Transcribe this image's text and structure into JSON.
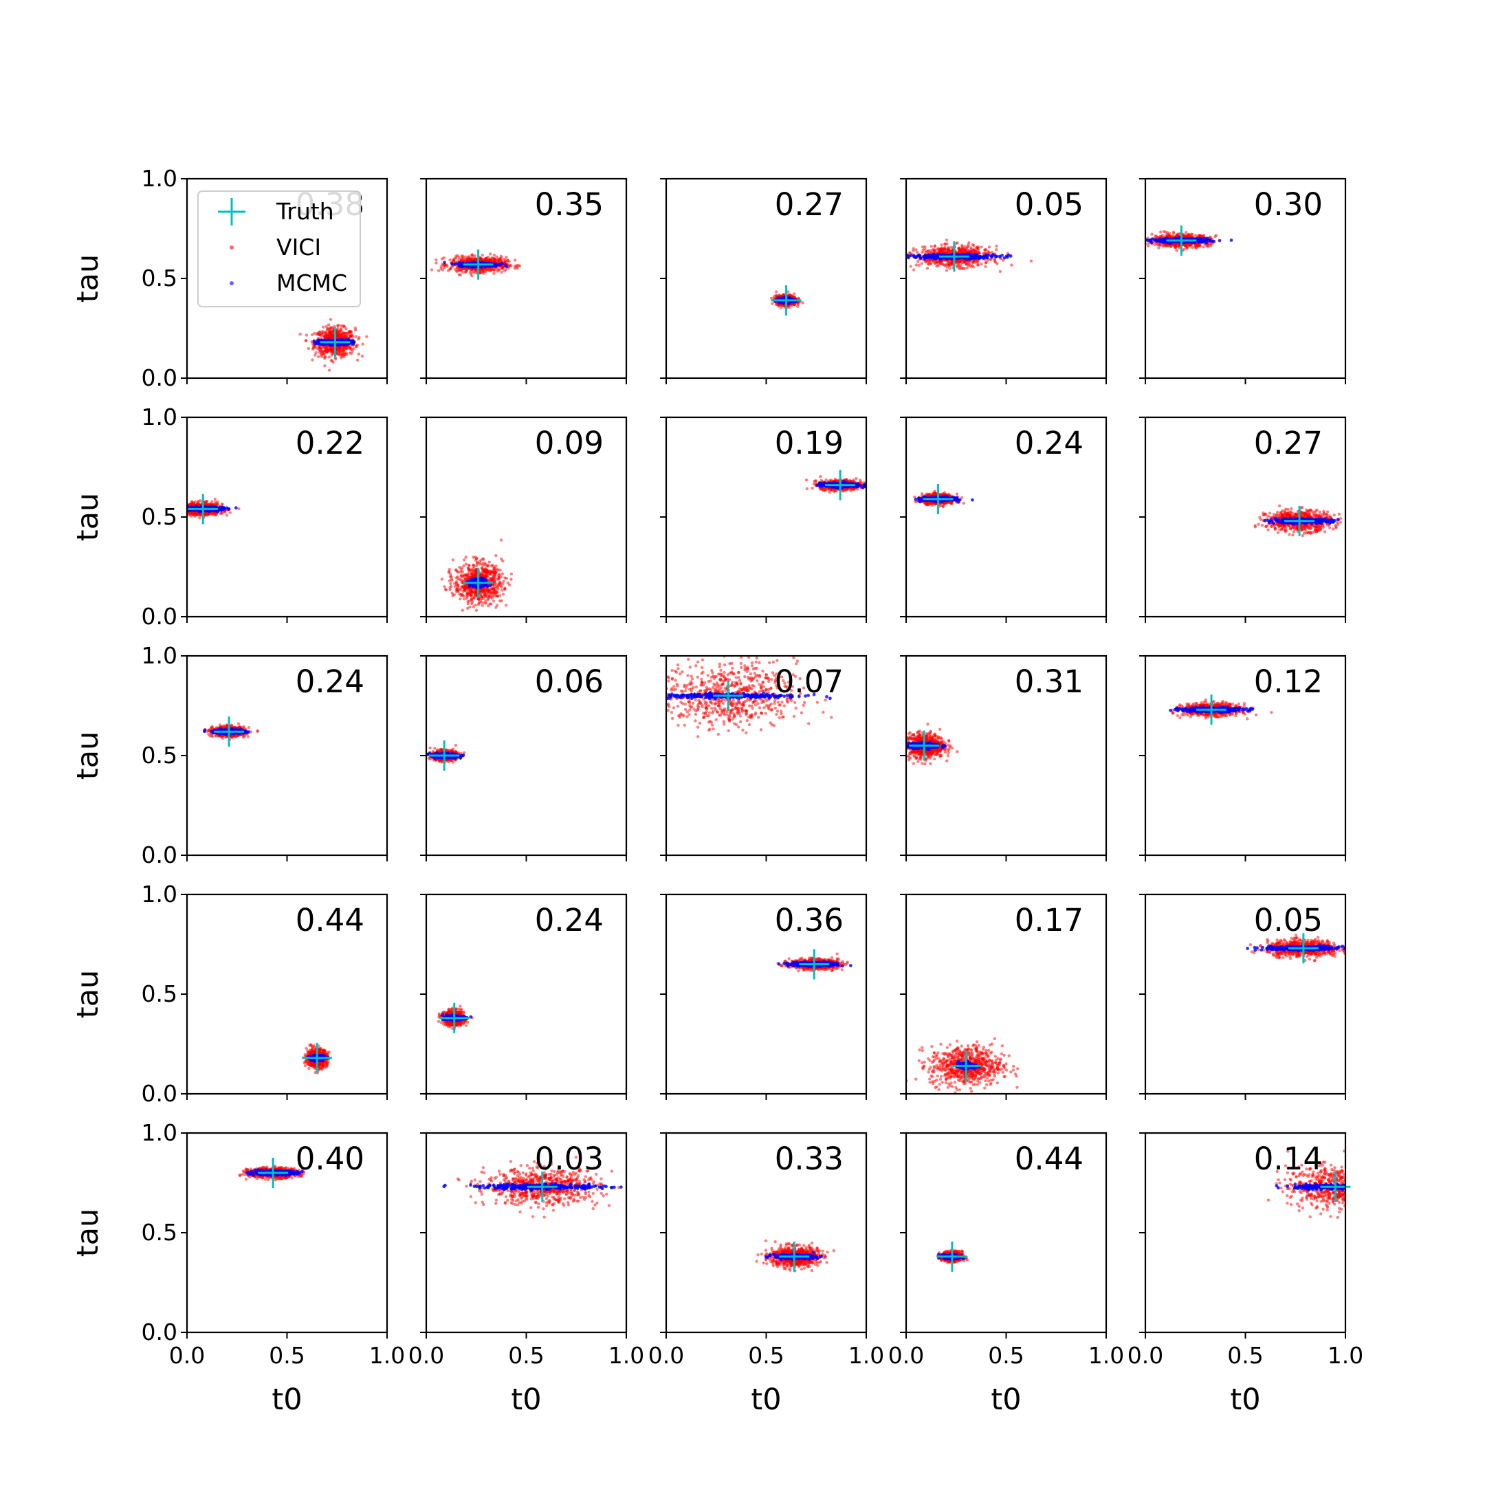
{
  "chart_data": {
    "type": "scatter",
    "grid_rows": 5,
    "grid_cols": 5,
    "xlabel": "t0",
    "ylabel": "tau",
    "xlim": [
      0,
      1
    ],
    "ylim": [
      0,
      1
    ],
    "xticks": [
      "0.0",
      "0.5",
      "1.0"
    ],
    "yticks": [
      "0.0",
      "0.5",
      "1.0"
    ],
    "grid": false,
    "legend": {
      "placement": "top-left of first panel",
      "entries": [
        {
          "name": "Truth",
          "marker": "plus",
          "color": "#00bfbf"
        },
        {
          "name": "VICI",
          "marker": "dot",
          "color": "#ff0000"
        },
        {
          "name": "MCMC",
          "marker": "dot",
          "color": "#0000ff"
        }
      ]
    },
    "series_colors": {
      "truth": "#00bfbf",
      "vici": "#ff0000",
      "mcmc": "#0000ff"
    },
    "panels": [
      {
        "label": "0.38",
        "truth": [
          0.74,
          0.18
        ],
        "vici_sigma": [
          0.05,
          0.035
        ],
        "mcmc_sigma": [
          0.04,
          0.006
        ]
      },
      {
        "label": "0.35",
        "truth": [
          0.26,
          0.57
        ],
        "vici_sigma": [
          0.07,
          0.018
        ],
        "mcmc_sigma": [
          0.05,
          0.005
        ]
      },
      {
        "label": "0.27",
        "truth": [
          0.6,
          0.39
        ],
        "vici_sigma": [
          0.025,
          0.012
        ],
        "mcmc_sigma": [
          0.02,
          0.005
        ]
      },
      {
        "label": "0.05",
        "truth": [
          0.24,
          0.61
        ],
        "vici_sigma": [
          0.09,
          0.025
        ],
        "mcmc_sigma": [
          0.11,
          0.005
        ]
      },
      {
        "label": "0.30",
        "truth": [
          0.18,
          0.69
        ],
        "vici_sigma": [
          0.07,
          0.015
        ],
        "mcmc_sigma": [
          0.07,
          0.005
        ]
      },
      {
        "label": "0.22",
        "truth": [
          0.08,
          0.54
        ],
        "vici_sigma": [
          0.05,
          0.015
        ],
        "mcmc_sigma": [
          0.05,
          0.005
        ]
      },
      {
        "label": "0.09",
        "truth": [
          0.26,
          0.17
        ],
        "vici_sigma": [
          0.06,
          0.05
        ],
        "mcmc_sigma": [
          0.02,
          0.01
        ]
      },
      {
        "label": "0.19",
        "truth": [
          0.87,
          0.66
        ],
        "vici_sigma": [
          0.05,
          0.012
        ],
        "mcmc_sigma": [
          0.05,
          0.005
        ]
      },
      {
        "label": "0.24",
        "truth": [
          0.16,
          0.59
        ],
        "vici_sigma": [
          0.04,
          0.012
        ],
        "mcmc_sigma": [
          0.04,
          0.005
        ]
      },
      {
        "label": "0.27",
        "truth": [
          0.77,
          0.48
        ],
        "vici_sigma": [
          0.08,
          0.025
        ],
        "mcmc_sigma": [
          0.08,
          0.005
        ]
      },
      {
        "label": "0.24",
        "truth": [
          0.21,
          0.62
        ],
        "vici_sigma": [
          0.04,
          0.012
        ],
        "mcmc_sigma": [
          0.04,
          0.005
        ]
      },
      {
        "label": "0.06",
        "truth": [
          0.09,
          0.5
        ],
        "vici_sigma": [
          0.03,
          0.012
        ],
        "mcmc_sigma": [
          0.035,
          0.005
        ]
      },
      {
        "label": "0.07",
        "truth": [
          0.31,
          0.8
        ],
        "vici_sigma": [
          0.17,
          0.08
        ],
        "mcmc_sigma": [
          0.18,
          0.006
        ]
      },
      {
        "label": "0.31",
        "truth": [
          0.09,
          0.55
        ],
        "vici_sigma": [
          0.05,
          0.03
        ],
        "mcmc_sigma": [
          0.04,
          0.006
        ]
      },
      {
        "label": "0.12",
        "truth": [
          0.33,
          0.73
        ],
        "vici_sigma": [
          0.07,
          0.015
        ],
        "mcmc_sigma": [
          0.08,
          0.005
        ]
      },
      {
        "label": "0.44",
        "truth": [
          0.65,
          0.18
        ],
        "vici_sigma": [
          0.025,
          0.022
        ],
        "mcmc_sigma": [
          0.015,
          0.006
        ]
      },
      {
        "label": "0.24",
        "truth": [
          0.14,
          0.38
        ],
        "vici_sigma": [
          0.025,
          0.018
        ],
        "mcmc_sigma": [
          0.025,
          0.005
        ]
      },
      {
        "label": "0.36",
        "truth": [
          0.74,
          0.65
        ],
        "vici_sigma": [
          0.06,
          0.012
        ],
        "mcmc_sigma": [
          0.06,
          0.005
        ]
      },
      {
        "label": "0.17",
        "truth": [
          0.3,
          0.14
        ],
        "vici_sigma": [
          0.09,
          0.05
        ],
        "mcmc_sigma": [
          0.02,
          0.006
        ]
      },
      {
        "label": "0.05",
        "truth": [
          0.79,
          0.73
        ],
        "vici_sigma": [
          0.09,
          0.02
        ],
        "mcmc_sigma": [
          0.1,
          0.005
        ]
      },
      {
        "label": "0.40",
        "truth": [
          0.43,
          0.8
        ],
        "vici_sigma": [
          0.06,
          0.012
        ],
        "mcmc_sigma": [
          0.06,
          0.005
        ]
      },
      {
        "label": "0.03",
        "truth": [
          0.58,
          0.73
        ],
        "vici_sigma": [
          0.14,
          0.045
        ],
        "mcmc_sigma": [
          0.16,
          0.006
        ]
      },
      {
        "label": "0.33",
        "truth": [
          0.64,
          0.38
        ],
        "vici_sigma": [
          0.06,
          0.025
        ],
        "mcmc_sigma": [
          0.05,
          0.005
        ]
      },
      {
        "label": "0.44",
        "truth": [
          0.23,
          0.38
        ],
        "vici_sigma": [
          0.025,
          0.012
        ],
        "mcmc_sigma": [
          0.02,
          0.005
        ]
      },
      {
        "label": "0.14",
        "truth": [
          0.95,
          0.73
        ],
        "vici_sigma": [
          0.12,
          0.05
        ],
        "mcmc_sigma": [
          0.1,
          0.006
        ]
      }
    ]
  }
}
